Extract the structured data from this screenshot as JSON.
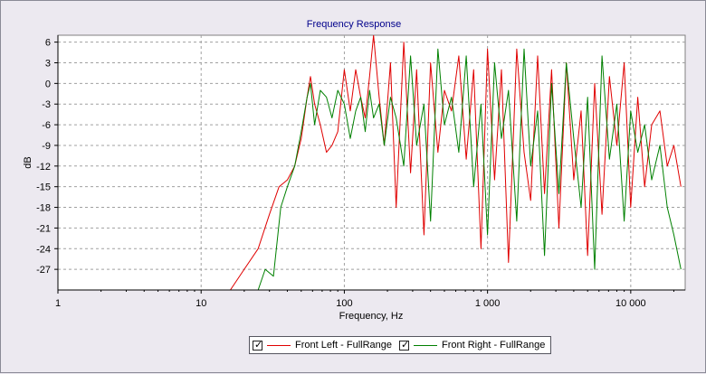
{
  "chart_data": {
    "type": "line",
    "title": "Frequency Response",
    "xlabel": "Frequency, Hz",
    "ylabel": "dB",
    "xscale": "log",
    "xlim": [
      1,
      24000
    ],
    "ylim": [
      -30,
      7
    ],
    "x_ticks": [
      1,
      10,
      100,
      1000,
      10000
    ],
    "x_tick_labels": [
      "1",
      "10",
      "100",
      "1 000",
      "10 000"
    ],
    "y_ticks": [
      6,
      3,
      0,
      -3,
      -6,
      -9,
      -12,
      -15,
      -18,
      -21,
      -24,
      -27
    ],
    "y_tick_labels": [
      "6",
      "3",
      "0",
      "-3",
      "-6",
      "-9",
      "-12",
      "-15",
      "-18",
      "-21",
      "-24",
      "-27"
    ],
    "grid": true,
    "legend_position": "bottom-center",
    "series": [
      {
        "name": "Front Left - FullRange",
        "color": "#e00000",
        "checked": true,
        "x": [
          16,
          20,
          25,
          30,
          35,
          40,
          45,
          50,
          55,
          58,
          62,
          68,
          75,
          82,
          90,
          100,
          110,
          120,
          130,
          140,
          150,
          160,
          175,
          190,
          210,
          230,
          260,
          290,
          320,
          360,
          400,
          450,
          500,
          560,
          630,
          710,
          800,
          900,
          1000,
          1120,
          1250,
          1400,
          1600,
          1800,
          2000,
          2240,
          2500,
          2800,
          3150,
          3550,
          4000,
          4500,
          5000,
          5600,
          6300,
          7100,
          8000,
          9000,
          10000,
          11200,
          12500,
          14000,
          16000,
          18000,
          20000,
          22400
        ],
        "y": [
          -30,
          -27,
          -24,
          -19,
          -15,
          -14,
          -12,
          -8,
          -2,
          1,
          -3,
          -6,
          -10,
          -9,
          -7,
          2,
          -4,
          2,
          -2,
          -5,
          1,
          7,
          -2,
          -9,
          3,
          -18,
          6,
          -13,
          2,
          -22,
          3,
          -10,
          -1,
          -4,
          4,
          -11,
          2,
          -24,
          5,
          -14,
          2,
          -26,
          5,
          -10,
          -17,
          4,
          -16,
          2,
          -21,
          3,
          -14,
          -4,
          -25,
          0,
          -19,
          1,
          -9,
          3,
          -18,
          -2,
          -15,
          -6,
          -4,
          -12,
          -9,
          -15
        ]
      },
      {
        "name": "Front Right - FullRange",
        "color": "#008000",
        "checked": true,
        "x": [
          25,
          28,
          32,
          36,
          40,
          45,
          50,
          55,
          58,
          62,
          68,
          75,
          82,
          90,
          100,
          110,
          120,
          130,
          140,
          150,
          160,
          175,
          190,
          210,
          230,
          260,
          290,
          320,
          360,
          400,
          450,
          500,
          560,
          630,
          710,
          800,
          900,
          1000,
          1120,
          1250,
          1400,
          1600,
          1800,
          2000,
          2240,
          2500,
          2800,
          3150,
          3550,
          4000,
          4500,
          5000,
          5600,
          6300,
          7100,
          8000,
          9000,
          10000,
          11200,
          12500,
          14000,
          16000,
          18000,
          20000,
          22400
        ],
        "y": [
          -30,
          -27,
          -28,
          -18,
          -15,
          -12,
          -7,
          -2,
          0,
          -6,
          -1,
          -2,
          -5,
          -1,
          -3,
          -8,
          -4,
          -2,
          -7,
          -1,
          -5,
          -3,
          -9,
          -2,
          -5,
          -12,
          4,
          -9,
          -3,
          -20,
          5,
          -6,
          -2,
          -10,
          4,
          -15,
          -3,
          -22,
          3,
          -8,
          -1,
          -20,
          5,
          -12,
          -4,
          -25,
          0,
          -16,
          3,
          -8,
          -18,
          -2,
          -27,
          4,
          -11,
          -3,
          -20,
          -4,
          -10,
          -6,
          -14,
          -9,
          -18,
          -22,
          -27
        ]
      }
    ]
  }
}
